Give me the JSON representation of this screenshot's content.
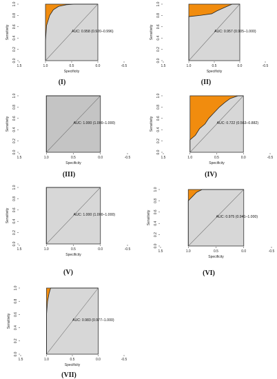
{
  "colors": {
    "fill": "#f18c0e",
    "area": "#d7d7d7",
    "area_dark": "#c4c4c4"
  },
  "chart_data": [
    {
      "type": "area",
      "panel": "(I)",
      "title": "",
      "xlabel": "Specificity",
      "ylabel": "Sensitivity",
      "auc_label": "AUC: 0.958 (0.920–0.996)",
      "x_ticks": [
        "1.5",
        "1.0",
        "0.5",
        "0.0",
        "-0.5"
      ],
      "y_ticks": [
        "0.0",
        "0.2",
        "0.4",
        "0.6",
        "0.8",
        "1.0"
      ],
      "xlim": [
        1.5,
        -0.5
      ],
      "ylim": [
        0,
        1
      ],
      "shade": "light",
      "roc": [
        [
          1,
          0
        ],
        [
          1,
          0.34
        ],
        [
          0.98,
          0.62
        ],
        [
          0.92,
          0.8
        ],
        [
          0.85,
          0.9
        ],
        [
          0.75,
          0.96
        ],
        [
          0.6,
          0.99
        ],
        [
          0.45,
          1
        ],
        [
          0,
          1
        ]
      ]
    },
    {
      "type": "area",
      "panel": "(II)",
      "title": "",
      "xlabel": "Specificity",
      "ylabel": "Sensitivity",
      "auc_label": "AUC: 0.957 (0.905–1.000)",
      "x_ticks": [
        "1.5",
        "1.0",
        "0.5",
        "0.0",
        "-0.5"
      ],
      "y_ticks": [
        "0.0",
        "0.2",
        "0.4",
        "0.6",
        "0.8",
        "1.0"
      ],
      "xlim": [
        1.5,
        -0.5
      ],
      "ylim": [
        0,
        1
      ],
      "shade": "light",
      "roc": [
        [
          1,
          0
        ],
        [
          1,
          0.78
        ],
        [
          0.78,
          0.8
        ],
        [
          0.55,
          0.83
        ],
        [
          0.45,
          0.88
        ],
        [
          0.3,
          0.94
        ],
        [
          0.15,
          1
        ],
        [
          0,
          1
        ]
      ]
    },
    {
      "type": "area",
      "panel": "(III)",
      "title": "",
      "xlabel": "Specificity",
      "ylabel": "Sensitivity",
      "auc_label": "AUC: 1.000 (1.000–1.000)",
      "x_ticks": [
        "1.5",
        "1.0",
        "0.5",
        "0.0",
        "-0.5"
      ],
      "y_ticks": [
        "0.0",
        "0.2",
        "0.4",
        "0.6",
        "0.8",
        "1.0"
      ],
      "xlim": [
        1.5,
        -0.5
      ],
      "ylim": [
        0,
        1
      ],
      "shade": "dark",
      "roc": [
        [
          1,
          0
        ],
        [
          1,
          1
        ],
        [
          0,
          1
        ]
      ]
    },
    {
      "type": "area",
      "panel": "(IV)",
      "title": "",
      "xlabel": "Specificity",
      "ylabel": "Sensitivity",
      "auc_label": "AUC: 0.722 (0.563–0.882)",
      "x_ticks": [
        "1.5",
        "1.0",
        "0.5",
        "0.0",
        "-0.5"
      ],
      "y_ticks": [
        "0.0",
        "0.2",
        "0.4",
        "0.6",
        "0.8",
        "1.0"
      ],
      "xlim": [
        1.5,
        -0.5
      ],
      "ylim": [
        0,
        1
      ],
      "shade": "light",
      "roc": [
        [
          1,
          0
        ],
        [
          1,
          0.22
        ],
        [
          0.9,
          0.3
        ],
        [
          0.82,
          0.42
        ],
        [
          0.72,
          0.5
        ],
        [
          0.65,
          0.6
        ],
        [
          0.55,
          0.7
        ],
        [
          0.45,
          0.8
        ],
        [
          0.35,
          0.88
        ],
        [
          0.25,
          0.95
        ],
        [
          0.1,
          1
        ],
        [
          0,
          1
        ]
      ]
    },
    {
      "type": "area",
      "panel": "(V)",
      "title": "",
      "xlabel": "Specificity",
      "ylabel": "Sensitivity",
      "auc_label": "AUC: 1.000 (1.000–1.000)",
      "x_ticks": [
        "1.5",
        "1.0",
        "0.5",
        "0.0",
        "-0.5"
      ],
      "y_ticks": [
        "0.0",
        "0.2",
        "0.4",
        "0.6",
        "0.8",
        "1.0"
      ],
      "xlim": [
        1.5,
        -0.5
      ],
      "ylim": [
        0,
        1
      ],
      "shade": "light",
      "roc": [
        [
          1,
          0
        ],
        [
          1,
          1
        ],
        [
          0,
          1
        ]
      ]
    },
    {
      "type": "area",
      "panel": "(VI)",
      "title": "",
      "xlabel": "Specificity",
      "ylabel": "Sensitivity",
      "auc_label": "AUC: 0.975 (0.941–1.000)",
      "x_ticks": [
        "1.5",
        "1.0",
        "0.5",
        "0.0",
        "-0.5"
      ],
      "y_ticks": [
        "0.0",
        "0.2",
        "0.4",
        "0.6",
        "0.8",
        "1.0"
      ],
      "xlim": [
        1.5,
        -0.5
      ],
      "ylim": [
        0,
        1
      ],
      "shade": "light",
      "roc": [
        [
          1,
          0
        ],
        [
          1,
          0.8
        ],
        [
          0.92,
          0.88
        ],
        [
          0.85,
          0.95
        ],
        [
          0.75,
          1
        ],
        [
          0,
          1
        ]
      ]
    },
    {
      "type": "area",
      "panel": "(VII)",
      "title": "",
      "xlabel": "Specificity",
      "ylabel": "Sensitivity",
      "auc_label": "AUC: 0.983 (0.977–1.000)",
      "x_ticks": [
        "1.5",
        "1.0",
        "0.5",
        "0.0",
        "-0.5"
      ],
      "y_ticks": [
        "0.0",
        "0.2",
        "0.4",
        "0.6",
        "0.8",
        "1.0"
      ],
      "xlim": [
        1.5,
        -0.5
      ],
      "ylim": [
        0,
        1
      ],
      "shade": "light",
      "roc": [
        [
          1,
          0
        ],
        [
          1,
          0.6
        ],
        [
          0.98,
          0.8
        ],
        [
          0.95,
          0.92
        ],
        [
          0.92,
          1
        ],
        [
          0,
          1
        ]
      ]
    }
  ]
}
